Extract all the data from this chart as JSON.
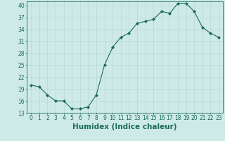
{
  "x": [
    0,
    1,
    2,
    3,
    4,
    5,
    6,
    7,
    8,
    9,
    10,
    11,
    12,
    13,
    14,
    15,
    16,
    17,
    18,
    19,
    20,
    21,
    22,
    23
  ],
  "y": [
    20,
    19.5,
    17.5,
    16,
    16,
    14,
    14,
    14.5,
    17.5,
    25,
    29.5,
    32,
    33,
    35.5,
    36,
    36.5,
    38.5,
    38,
    40.5,
    40.5,
    38.5,
    34.5,
    33,
    32
  ],
  "line_color": "#1a6b5a",
  "marker": "D",
  "marker_size": 2.0,
  "bg_color": "#ceeae8",
  "grid_color": "#b8d8d5",
  "xlabel": "Humidex (Indice chaleur)",
  "ylim": [
    13,
    41
  ],
  "xlim": [
    -0.5,
    23.5
  ],
  "yticks": [
    13,
    16,
    19,
    22,
    25,
    28,
    31,
    34,
    37,
    40
  ],
  "xticks": [
    0,
    1,
    2,
    3,
    4,
    5,
    6,
    7,
    8,
    9,
    10,
    11,
    12,
    13,
    14,
    15,
    16,
    17,
    18,
    19,
    20,
    21,
    22,
    23
  ],
  "tick_labelsize": 5.5,
  "xlabel_fontsize": 7.5,
  "linewidth": 0.8
}
